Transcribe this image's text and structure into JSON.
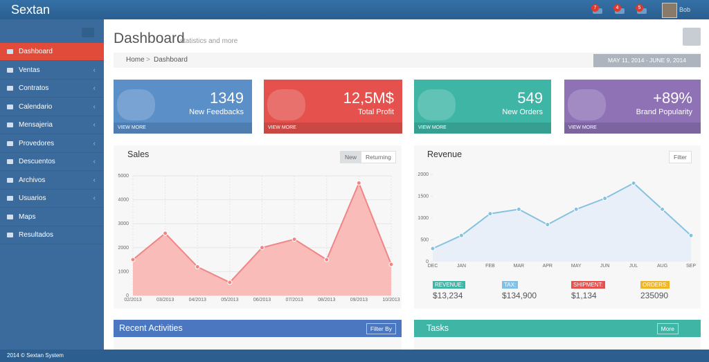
{
  "brand": "Sextan",
  "header": {
    "badges": [
      "7",
      "4",
      "5"
    ],
    "user": "Bob"
  },
  "sidebar": {
    "items": [
      "Dashboard",
      "Ventas",
      "Contratos",
      "Calendario",
      "Mensajeria",
      "Provedores",
      "Descuentos",
      "Archivos",
      "Usuarios",
      "Maps",
      "Resultados"
    ]
  },
  "page": {
    "title": "Dashboard",
    "subtitle": "statistics and more"
  },
  "breadcrumb": [
    "Home",
    "Dashboard"
  ],
  "date_range": "MAY 11, 2014 - JUNE 9, 2014",
  "stats": [
    {
      "value": "1349",
      "label": "New Feedbacks",
      "link": "VIEW MORE",
      "color": "#5b8fc8"
    },
    {
      "value": "12,5M$",
      "label": "Total Profit",
      "link": "VIEW MORE",
      "color": "#e5524e"
    },
    {
      "value": "549",
      "label": "New Orders",
      "link": "VIEW MORE",
      "color": "#3fb5a6"
    },
    {
      "value": "+89%",
      "label": "Brand Popularity",
      "link": "VIEW MORE",
      "color": "#8e72b5"
    }
  ],
  "chart_data": [
    {
      "type": "area",
      "title": "Sales",
      "buttons": [
        "New",
        "Returning"
      ],
      "categories": [
        "02/2013",
        "03/2013",
        "04/2013",
        "05/2013",
        "06/2013",
        "07/2013",
        "08/2013",
        "09/2013",
        "10/2013"
      ],
      "values": [
        1500,
        2600,
        1200,
        550,
        2000,
        2350,
        1500,
        4700,
        1300
      ],
      "color": "#f08585",
      "fill": "#f9bcb9",
      "ylim": [
        0,
        5000
      ],
      "yticks": [
        0,
        1000,
        2000,
        3000,
        4000,
        5000
      ],
      "grid": true
    },
    {
      "type": "area",
      "title": "Revenue",
      "buttons": [
        "Filter"
      ],
      "categories": [
        "DEC",
        "JAN",
        "FEB",
        "MAR",
        "APR",
        "MAY",
        "JUN",
        "JUL",
        "AUG",
        "SEP"
      ],
      "values": [
        300,
        600,
        1100,
        1200,
        850,
        1200,
        1450,
        1800,
        1200,
        600
      ],
      "color": "#86c2e0",
      "fill": "#e9eff9",
      "ylim": [
        0,
        2000
      ],
      "yticks": [
        0,
        500,
        1000,
        1500,
        2000
      ],
      "grid": false
    }
  ],
  "revenue_summary": [
    {
      "label": "REVENUE:",
      "value": "$13,234",
      "color": "#3fb5a6"
    },
    {
      "label": "TAX:",
      "value": "$134,900",
      "color": "#7fc0e8"
    },
    {
      "label": "SHIPMENT:",
      "value": "$1,134",
      "color": "#e5524e"
    },
    {
      "label": "ORDERS:",
      "value": "235090",
      "color": "#f0b429"
    }
  ],
  "activities": {
    "title": "Recent Activities",
    "button": "Filter By"
  },
  "tasks": {
    "title": "Tasks",
    "button": "More"
  },
  "footer": "2014 © Sextan System"
}
